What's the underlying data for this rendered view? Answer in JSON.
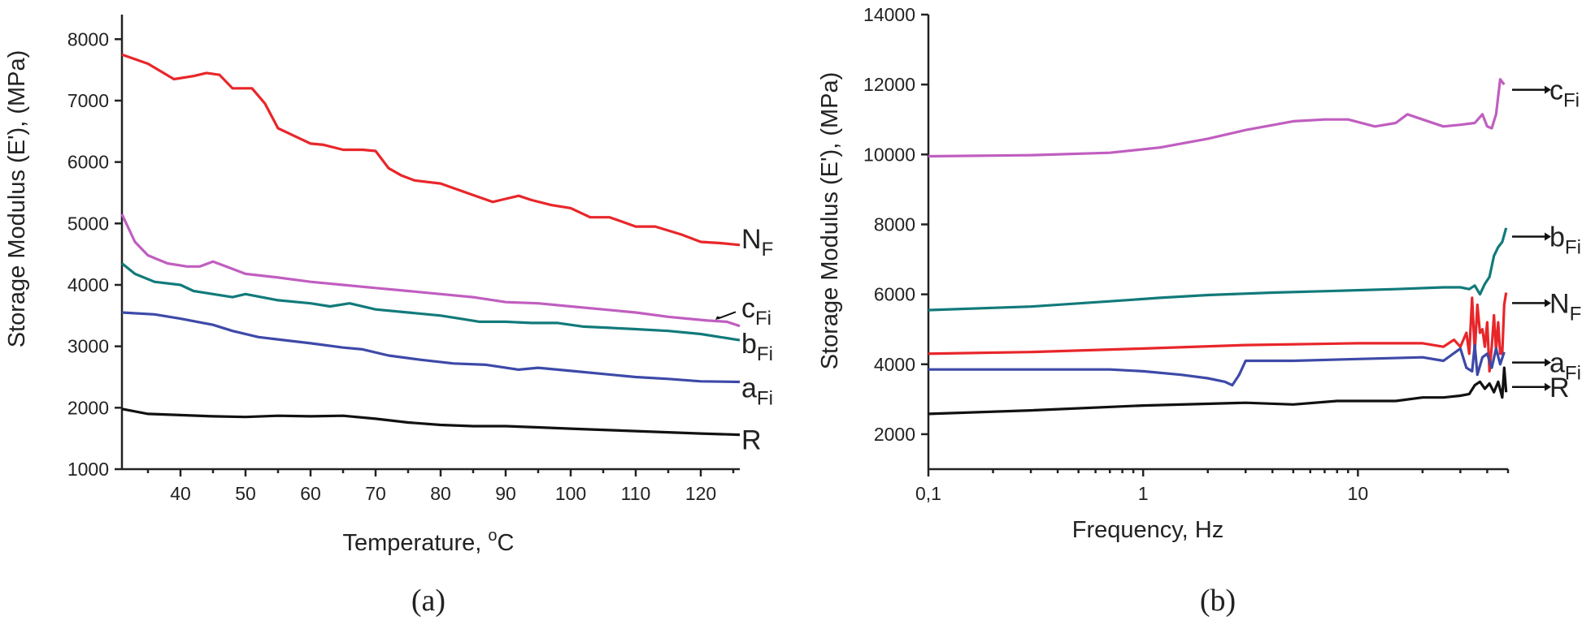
{
  "charts": [
    {
      "type": "line",
      "caption": "(a)",
      "ylabel": "Storage Modulus (E'), (MPa)",
      "xlabel": "Temperature, ",
      "xlabel_unit_sup": "o",
      "xlabel_unit": "C",
      "xlim": [
        31,
        126
      ],
      "ylim": [
        1000,
        8400
      ],
      "xticks": [
        40,
        50,
        60,
        70,
        80,
        90,
        100,
        110,
        120
      ],
      "yticks": [
        1000,
        2000,
        3000,
        4000,
        5000,
        6000,
        7000,
        8000
      ],
      "series": [
        {
          "name": "N",
          "sub": "F",
          "color": "#e8262a",
          "x": [
            31,
            35,
            39,
            42,
            44,
            46,
            48,
            51,
            53,
            55,
            57,
            60,
            62,
            65,
            68,
            70,
            72,
            74,
            76,
            80,
            84,
            88,
            90,
            92,
            94,
            97,
            100,
            103,
            106,
            110,
            113,
            117,
            120,
            123,
            126
          ],
          "y": [
            7750,
            7600,
            7350,
            7400,
            7450,
            7420,
            7200,
            7200,
            6950,
            6550,
            6450,
            6300,
            6280,
            6200,
            6200,
            6180,
            5900,
            5780,
            5700,
            5650,
            5500,
            5350,
            5400,
            5450,
            5380,
            5300,
            5250,
            5100,
            5100,
            4950,
            4950,
            4820,
            4700,
            4680,
            4650
          ]
        },
        {
          "name": "c",
          "sub": "Fi",
          "color": "#c05ec0",
          "x": [
            31,
            33,
            35,
            38,
            41,
            43,
            45,
            47,
            50,
            55,
            60,
            65,
            70,
            75,
            80,
            85,
            90,
            95,
            100,
            105,
            110,
            115,
            118,
            121,
            124,
            126
          ],
          "y": [
            5150,
            4700,
            4480,
            4350,
            4300,
            4300,
            4380,
            4300,
            4180,
            4120,
            4050,
            4000,
            3950,
            3900,
            3850,
            3800,
            3720,
            3700,
            3650,
            3600,
            3550,
            3480,
            3450,
            3420,
            3400,
            3330
          ]
        },
        {
          "name": "b",
          "sub": "Fi",
          "color": "#127a7a",
          "x": [
            31,
            33,
            36,
            40,
            42,
            45,
            48,
            50,
            55,
            60,
            63,
            66,
            70,
            75,
            80,
            83,
            86,
            90,
            94,
            98,
            102,
            106,
            110,
            115,
            120,
            123,
            126
          ],
          "y": [
            4350,
            4180,
            4050,
            4000,
            3900,
            3850,
            3800,
            3850,
            3750,
            3700,
            3650,
            3700,
            3600,
            3550,
            3500,
            3450,
            3400,
            3400,
            3380,
            3380,
            3320,
            3300,
            3280,
            3250,
            3200,
            3150,
            3100
          ]
        },
        {
          "name": "a",
          "sub": "Fi",
          "color": "#3d49a8",
          "x": [
            31,
            36,
            40,
            45,
            48,
            52,
            56,
            60,
            65,
            68,
            72,
            77,
            82,
            87,
            92,
            95,
            100,
            105,
            110,
            115,
            120,
            126
          ],
          "y": [
            3550,
            3520,
            3450,
            3350,
            3250,
            3150,
            3100,
            3050,
            2980,
            2950,
            2850,
            2780,
            2720,
            2700,
            2620,
            2650,
            2600,
            2550,
            2500,
            2470,
            2430,
            2420
          ]
        },
        {
          "name": "R",
          "sub": "",
          "color": "#111111",
          "x": [
            31,
            35,
            40,
            45,
            50,
            55,
            60,
            65,
            70,
            75,
            80,
            85,
            90,
            95,
            100,
            105,
            110,
            115,
            120,
            126
          ],
          "y": [
            1980,
            1900,
            1880,
            1860,
            1850,
            1870,
            1860,
            1870,
            1820,
            1760,
            1720,
            1700,
            1700,
            1680,
            1660,
            1640,
            1620,
            1600,
            1580,
            1560
          ]
        }
      ]
    },
    {
      "type": "line",
      "caption": "(b)",
      "ylabel": "Storage Modulus (E'), (MPa)",
      "xlabel": "Frequency, Hz",
      "xscale": "log",
      "xlim": [
        0.1,
        50
      ],
      "ylim": [
        1000,
        14000
      ],
      "xticks": [
        0.1,
        1,
        10
      ],
      "xtick_labels": [
        "0,1",
        "1",
        "10"
      ],
      "yticks": [
        2000,
        4000,
        6000,
        8000,
        10000,
        12000,
        14000
      ],
      "series": [
        {
          "name": "c",
          "sub": "Fi",
          "color": "#c05ec0",
          "x": [
            0.1,
            0.3,
            0.7,
            1.2,
            2,
            3,
            5,
            7,
            9,
            12,
            15,
            17,
            20,
            25,
            30,
            35,
            38,
            40,
            42,
            44,
            46,
            48
          ],
          "y": [
            9950,
            9980,
            10050,
            10200,
            10450,
            10700,
            10950,
            11000,
            11000,
            10800,
            10900,
            11150,
            11000,
            10800,
            10850,
            10900,
            11150,
            10800,
            10750,
            11150,
            12150,
            12000
          ]
        },
        {
          "name": "b",
          "sub": "Fi",
          "color": "#127a7a",
          "x": [
            0.1,
            0.3,
            0.7,
            1.2,
            2,
            4,
            8,
            15,
            25,
            30,
            33,
            35,
            37,
            39,
            41,
            43,
            45,
            47,
            49
          ],
          "y": [
            5550,
            5650,
            5800,
            5900,
            5980,
            6050,
            6100,
            6150,
            6200,
            6200,
            6150,
            6250,
            6000,
            6300,
            6500,
            7100,
            7350,
            7500,
            7900
          ]
        },
        {
          "name": "N",
          "sub": "F",
          "color": "#e8262a",
          "x": [
            0.1,
            0.3,
            1,
            3,
            10,
            20,
            25,
            28,
            30,
            32,
            33,
            34,
            35,
            36,
            37,
            38,
            39,
            40,
            41,
            42,
            43,
            44,
            45,
            46,
            47,
            48,
            49
          ],
          "y": [
            4300,
            4350,
            4450,
            4550,
            4600,
            4600,
            4500,
            4700,
            4500,
            4900,
            4300,
            5900,
            4350,
            5700,
            4900,
            5000,
            4500,
            5200,
            3800,
            4500,
            5400,
            4400,
            5200,
            4300,
            4300,
            5700,
            6050
          ]
        },
        {
          "name": "a",
          "sub": "Fi",
          "color": "#3d49a8",
          "x": [
            0.1,
            0.3,
            0.7,
            1,
            1.5,
            2,
            2.4,
            2.6,
            2.8,
            3,
            5,
            10,
            20,
            25,
            30,
            32,
            34,
            35,
            36,
            38,
            40,
            42,
            44,
            46,
            48
          ],
          "y": [
            3850,
            3850,
            3850,
            3800,
            3700,
            3600,
            3500,
            3400,
            3700,
            4100,
            4100,
            4150,
            4200,
            4100,
            4450,
            3900,
            3800,
            4550,
            3700,
            4200,
            4300,
            3900,
            4450,
            4000,
            4350
          ]
        },
        {
          "name": "R",
          "sub": "",
          "color": "#111111",
          "x": [
            0.1,
            0.3,
            1,
            3,
            5,
            8,
            15,
            20,
            25,
            30,
            33,
            35,
            37,
            39,
            41,
            43,
            45,
            47,
            48,
            49
          ],
          "y": [
            2580,
            2680,
            2820,
            2900,
            2850,
            2950,
            2950,
            3050,
            3050,
            3100,
            3150,
            3400,
            3500,
            3300,
            3450,
            3200,
            3500,
            3050,
            3900,
            3200
          ]
        }
      ]
    }
  ]
}
